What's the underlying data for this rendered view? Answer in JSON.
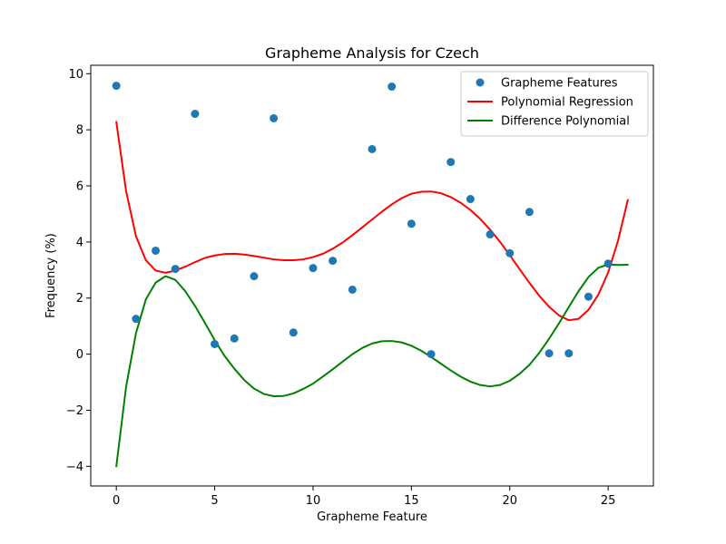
{
  "chart_data": {
    "type": "scatter",
    "title": "Grapheme Analysis for Czech",
    "xlabel": "Grapheme Feature",
    "ylabel": "Frequency (%)",
    "xlim": [
      -1.3,
      27.3
    ],
    "ylim": [
      -4.7,
      10.3
    ],
    "xticks": [
      0,
      5,
      10,
      15,
      20,
      25
    ],
    "yticks": [
      -4,
      -2,
      0,
      2,
      4,
      6,
      8,
      10
    ],
    "xtick_labels": [
      "0",
      "5",
      "10",
      "15",
      "20",
      "25"
    ],
    "ytick_labels": [
      "−4",
      "−2",
      "0",
      "2",
      "4",
      "6",
      "8",
      "10"
    ],
    "legend_position": "top-right",
    "grid": false,
    "series": [
      {
        "name": "Grapheme Features",
        "kind": "scatter",
        "color": "#1f77b4",
        "x": [
          0,
          1,
          2,
          3,
          4,
          5,
          6,
          7,
          8,
          9,
          10,
          11,
          12,
          13,
          14,
          15,
          16,
          17,
          18,
          19,
          20,
          21,
          22,
          23,
          24,
          25
        ],
        "y": [
          9.57,
          1.26,
          3.69,
          3.04,
          8.57,
          0.36,
          0.56,
          2.78,
          8.41,
          0.77,
          3.07,
          3.33,
          2.3,
          7.31,
          9.54,
          4.65,
          0.0,
          6.85,
          5.53,
          4.27,
          3.6,
          5.07,
          0.03,
          0.03,
          2.05,
          3.23
        ]
      },
      {
        "name": "Polynomial Regression",
        "kind": "line",
        "color": "#ff0000",
        "x": [
          0,
          0.5,
          1,
          1.5,
          2,
          2.5,
          3,
          3.5,
          4,
          4.5,
          5,
          5.5,
          6,
          6.5,
          7,
          7.5,
          8,
          8.5,
          9,
          9.5,
          10,
          10.5,
          11,
          11.5,
          12,
          12.5,
          13,
          13.5,
          14,
          14.5,
          15,
          15.5,
          16,
          16.5,
          17,
          17.5,
          18,
          18.5,
          19,
          19.5,
          20,
          20.5,
          21,
          21.5,
          22,
          22.5,
          23,
          23.5,
          24,
          24.5,
          25,
          25.5,
          26
        ],
        "y": [
          8.28,
          5.8,
          4.2,
          3.35,
          2.98,
          2.9,
          2.98,
          3.12,
          3.28,
          3.43,
          3.52,
          3.57,
          3.58,
          3.55,
          3.5,
          3.44,
          3.38,
          3.35,
          3.35,
          3.38,
          3.46,
          3.58,
          3.76,
          3.98,
          4.24,
          4.52,
          4.8,
          5.08,
          5.34,
          5.56,
          5.72,
          5.79,
          5.8,
          5.74,
          5.6,
          5.4,
          5.14,
          4.82,
          4.44,
          4.01,
          3.53,
          3.03,
          2.54,
          2.08,
          1.69,
          1.38,
          1.21,
          1.26,
          1.58,
          2.12,
          2.91,
          4.04,
          5.5
        ]
      },
      {
        "name": "Difference Polynomial",
        "kind": "line",
        "color": "#008000",
        "x": [
          0,
          0.5,
          1,
          1.5,
          2,
          2.5,
          3,
          3.5,
          4,
          4.5,
          5,
          5.5,
          6,
          6.5,
          7,
          7.5,
          8,
          8.5,
          9,
          9.5,
          10,
          10.5,
          11,
          11.5,
          12,
          12.5,
          13,
          13.5,
          14,
          14.5,
          15,
          15.5,
          16,
          16.5,
          17,
          17.5,
          18,
          18.5,
          19,
          19.5,
          20,
          20.5,
          21,
          21.5,
          22,
          22.5,
          23,
          23.5,
          24,
          24.5,
          25,
          25.5,
          26
        ],
        "y": [
          -4.0,
          -1.15,
          0.75,
          1.95,
          2.55,
          2.78,
          2.65,
          2.25,
          1.72,
          1.12,
          0.5,
          -0.06,
          -0.52,
          -0.92,
          -1.23,
          -1.42,
          -1.5,
          -1.49,
          -1.4,
          -1.24,
          -1.05,
          -0.8,
          -0.54,
          -0.27,
          0.0,
          0.22,
          0.38,
          0.46,
          0.47,
          0.42,
          0.3,
          0.12,
          -0.1,
          -0.34,
          -0.58,
          -0.8,
          -0.98,
          -1.1,
          -1.15,
          -1.1,
          -0.95,
          -0.7,
          -0.38,
          0.05,
          0.55,
          1.1,
          1.68,
          2.25,
          2.75,
          3.08,
          3.2,
          3.18,
          3.19
        ]
      }
    ]
  }
}
